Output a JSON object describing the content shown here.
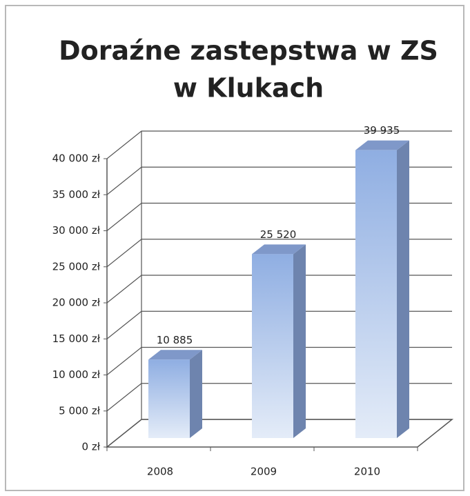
{
  "chart_data": {
    "type": "bar3d",
    "title": "Doraźne zastepstwa w ZS",
    "subtitle": "w Klukach",
    "categories": [
      "2008",
      "2009",
      "2010"
    ],
    "values": [
      10885,
      25520,
      39935
    ],
    "value_labels": [
      "10 885",
      "25 520",
      "39 935"
    ],
    "color": "#a9bfe6",
    "ylim": [
      0,
      40000
    ],
    "yticks": [
      {
        "value": 0,
        "label": "0 zł"
      },
      {
        "value": 5000,
        "label": "5 000 zł"
      },
      {
        "value": 10000,
        "label": "10 000 zł"
      },
      {
        "value": 15000,
        "label": "15 000 zł"
      },
      {
        "value": 20000,
        "label": "20 000 zł"
      },
      {
        "value": 25000,
        "label": "25 000 zł"
      },
      {
        "value": 30000,
        "label": "30 000 zł"
      },
      {
        "value": 35000,
        "label": "35 000 zł"
      },
      {
        "value": 40000,
        "label": "40 000 zł"
      }
    ],
    "grid": true
  }
}
